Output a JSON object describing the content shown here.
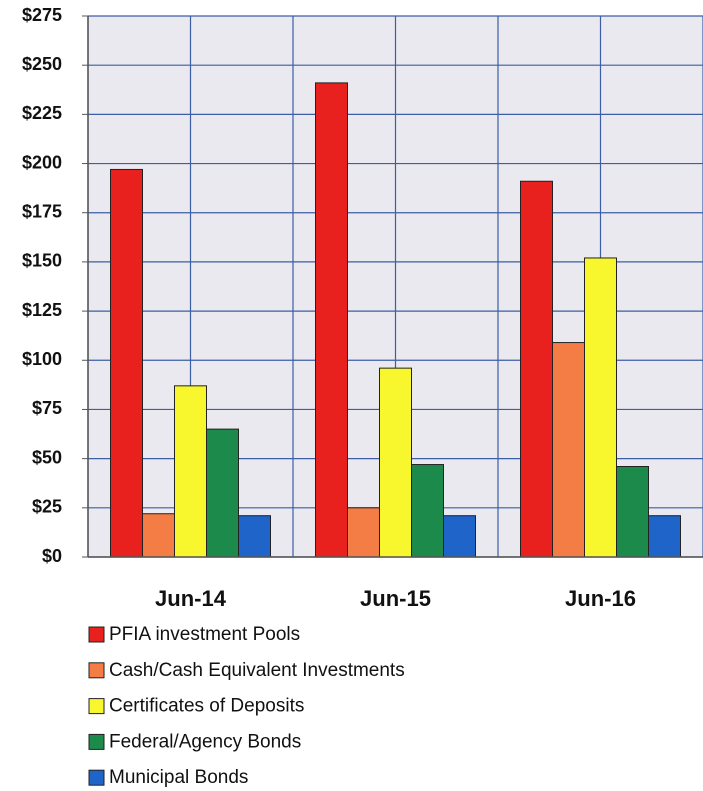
{
  "chart_data": {
    "type": "bar",
    "categories": [
      "Jun-14",
      "Jun-15",
      "Jun-16"
    ],
    "series": [
      {
        "name": "PFIA investment Pools",
        "color": "#e8201e",
        "values": [
          197,
          241,
          191
        ]
      },
      {
        "name": "Cash/Cash Equivalent Investments",
        "color": "#f47c45",
        "values": [
          22,
          25,
          109
        ]
      },
      {
        "name": "Certificates of Deposits",
        "color": "#f8f62c",
        "values": [
          87,
          96,
          152
        ]
      },
      {
        "name": "Federal/Agency Bonds",
        "color": "#1b8a4a",
        "values": [
          65,
          47,
          46
        ]
      },
      {
        "name": "Municipal Bonds",
        "color": "#1f64c8",
        "values": [
          21,
          21,
          21
        ]
      }
    ],
    "ylim": [
      0,
      275
    ],
    "yticks": [
      {
        "value": 0,
        "label": "$0"
      },
      {
        "value": 25,
        "label": "$25"
      },
      {
        "value": 50,
        "label": "$50"
      },
      {
        "value": 75,
        "label": "$75"
      },
      {
        "value": 100,
        "label": "$100"
      },
      {
        "value": 125,
        "label": "$125"
      },
      {
        "value": 150,
        "label": "$150"
      },
      {
        "value": 175,
        "label": "$175"
      },
      {
        "value": 200,
        "label": "$200"
      },
      {
        "value": 225,
        "label": "$225"
      },
      {
        "value": 250,
        "label": "$250"
      },
      {
        "value": 275,
        "label": "$275"
      }
    ],
    "grid": true,
    "legend": "bottom"
  }
}
